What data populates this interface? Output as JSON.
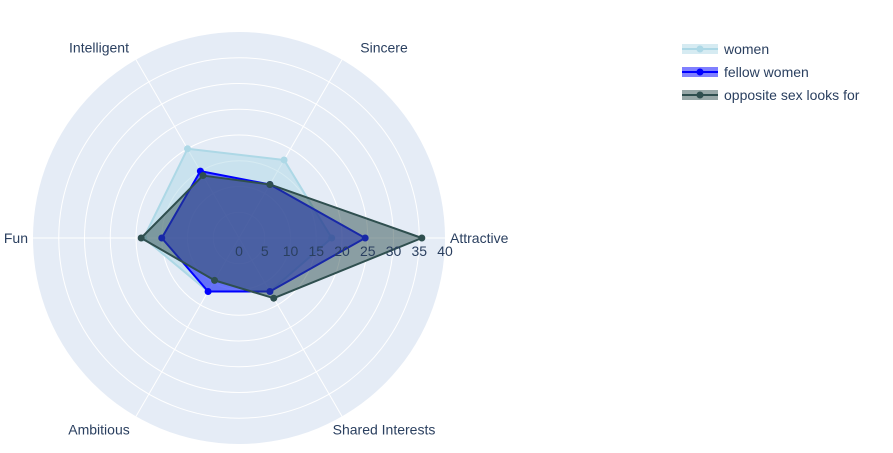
{
  "chart_data": {
    "type": "radar",
    "categories": [
      "Attractive",
      "Sincere",
      "Intelligent",
      "Fun",
      "Ambitious",
      "Shared Interests"
    ],
    "radial_range": [
      0,
      40
    ],
    "radial_ticks": [
      "0",
      "5",
      "10",
      "15",
      "20",
      "25",
      "30",
      "35",
      "40"
    ],
    "grid": true,
    "legend_position": "top-right",
    "series": [
      {
        "name": "women",
        "values": [
          18,
          17.5,
          20,
          18.5,
          12,
          12
        ],
        "color": "#add8e6"
      },
      {
        "name": "fellow women",
        "values": [
          24.5,
          12,
          15,
          15,
          12,
          12
        ],
        "color": "#0000ff"
      },
      {
        "name": "opposite sex looks for",
        "values": [
          35.5,
          12,
          14,
          19,
          9.5,
          13.5
        ],
        "color": "#2f4f4f"
      }
    ]
  },
  "colors": {
    "polar_bg": "#e5ecf6",
    "grid": "#ffffff",
    "text": "#2a3f5f"
  }
}
